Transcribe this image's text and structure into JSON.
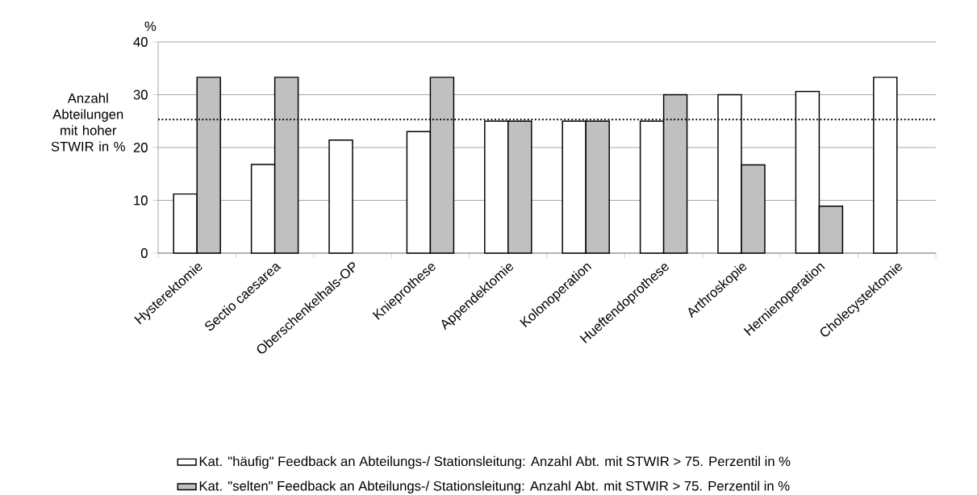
{
  "chart_data": {
    "type": "bar",
    "ylabel": "Anzahl Abteilungen mit hoher STWIR in %",
    "annotations": [
      "%"
    ],
    "categories": [
      "Hysterektomie",
      "Sectio caesarea",
      "Oberschenkelhals-OP",
      "Knieprothese",
      "Appendektomie",
      "Kolonoperation",
      "Hueftendoprothese",
      "Arthroskopie",
      "Hernienoperation",
      "Cholecystektomie"
    ],
    "series": [
      {
        "name": "Kat. \"häufig\" Feedback an Abteilungs-/ Stationsleitung: Anzahl Abt. mit STWIR > 75. Perzentil in %",
        "color": "#ffffff",
        "values": [
          11.2,
          16.8,
          21.4,
          23.0,
          25.0,
          25.0,
          25.0,
          30.0,
          30.6,
          33.3
        ]
      },
      {
        "name": "Kat. \"selten\" Feedback an Abteilungs-/ Stationsleitung: Anzahl Abt. mit STWIR > 75. Perzentil in %",
        "color": "#c0c0c0",
        "values": [
          33.3,
          33.3,
          null,
          33.3,
          25.0,
          25.0,
          30.0,
          16.7,
          8.9,
          null
        ]
      }
    ],
    "ylim": [
      0,
      40
    ],
    "yticks": [
      0,
      10,
      20,
      30,
      40
    ],
    "grid": "y",
    "legend": "bottom",
    "ref_lines": [
      {
        "axis": "y",
        "value": 25.3,
        "line_style": "dotted"
      }
    ]
  }
}
